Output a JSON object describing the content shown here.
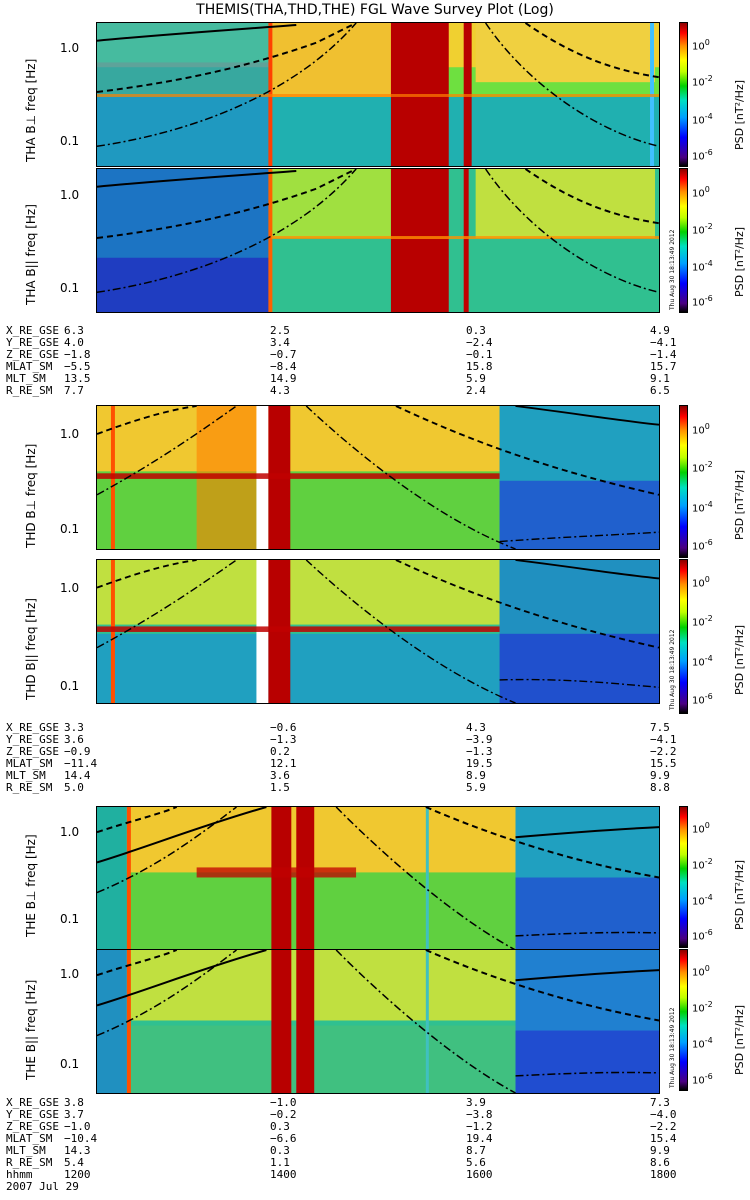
{
  "title": "THEMIS(THA,THD,THE) FGL Wave Survey Plot (Log)",
  "colorbar": {
    "ticks": [
      "10",
      "10",
      "10",
      "10"
    ],
    "exponents": [
      "0",
      "-2",
      "-4",
      "-6"
    ],
    "label": "PSD [nT²/Hz]"
  },
  "stamp": "Thu Aug 30 18:13:49 2012",
  "chart_data": [
    {
      "type": "heatmap",
      "probe": "THA",
      "panels": [
        {
          "name": "THA B⊥",
          "ylabel": "THA B⊥   freq [Hz]",
          "yticks": [
            "1.0",
            "0.1"
          ]
        },
        {
          "name": "THA B||",
          "ylabel": "THA B||   freq [Hz]",
          "yticks": [
            "1.0",
            "0.1"
          ]
        }
      ],
      "orbit": {
        "labels": [
          "X_RE_GSE",
          "Y_RE_GSE",
          "Z_RE_GSE",
          "MLAT_SM",
          "MLT_SM",
          "R_RE_SM"
        ],
        "columns": [
          [
            "6.3",
            "4.0",
            "−1.8",
            "−5.5",
            "13.5",
            "7.7"
          ],
          [
            "2.5",
            "3.4",
            "−0.7",
            "−8.4",
            "14.9",
            "4.3"
          ],
          [
            "0.3",
            "−2.4",
            "−0.1",
            "15.8",
            "5.9",
            "2.4"
          ],
          [
            "4.9",
            "−4.1",
            "−1.4",
            "15.7",
            "9.1",
            "6.5"
          ]
        ]
      }
    },
    {
      "type": "heatmap",
      "probe": "THD",
      "panels": [
        {
          "name": "THD B⊥",
          "ylabel": "THD B⊥   freq [Hz]",
          "yticks": [
            "1.0",
            "0.1"
          ]
        },
        {
          "name": "THD B||",
          "ylabel": "THD B||   freq [Hz]",
          "yticks": [
            "1.0",
            "0.1"
          ]
        }
      ],
      "orbit": {
        "labels": [
          "X_RE_GSE",
          "Y_RE_GSE",
          "Z_RE_GSE",
          "MLAT_SM",
          "MLT_SM",
          "R_RE_SM"
        ],
        "columns": [
          [
            "3.3",
            "3.6",
            "−0.9",
            "−11.4",
            "14.4",
            "5.0"
          ],
          [
            "−0.6",
            "−1.3",
            "0.2",
            "12.1",
            "3.6",
            "1.5"
          ],
          [
            "4.3",
            "−3.9",
            "−1.3",
            "19.5",
            "8.9",
            "5.9"
          ],
          [
            "7.5",
            "−4.1",
            "−2.2",
            "15.5",
            "9.9",
            "8.8"
          ]
        ]
      }
    },
    {
      "type": "heatmap",
      "probe": "THE",
      "panels": [
        {
          "name": "THE B⊥",
          "ylabel": "THE B⊥   freq [Hz]",
          "yticks": [
            "1.0",
            "0.1"
          ]
        },
        {
          "name": "THE B||",
          "ylabel": "THE B||   freq [Hz]",
          "yticks": [
            "1.0",
            "0.1"
          ]
        }
      ],
      "orbit": {
        "labels": [
          "X_RE_GSE",
          "Y_RE_GSE",
          "Z_RE_GSE",
          "MLAT_SM",
          "MLT_SM",
          "R_RE_SM",
          "hhmm"
        ],
        "columns": [
          [
            "3.8",
            "3.7",
            "−1.0",
            "−10.4",
            "14.3",
            "5.4",
            "1200"
          ],
          [
            "−1.0",
            "−0.2",
            "0.3",
            "−6.6",
            "0.3",
            "1.1",
            "1400"
          ],
          [
            "3.9",
            "−3.8",
            "−1.2",
            "19.4",
            "8.7",
            "5.6",
            "1600"
          ],
          [
            "7.3",
            "−4.0",
            "−2.2",
            "15.4",
            "9.9",
            "8.6",
            "1800"
          ]
        ]
      }
    }
  ],
  "date": "2007 Jul 29"
}
